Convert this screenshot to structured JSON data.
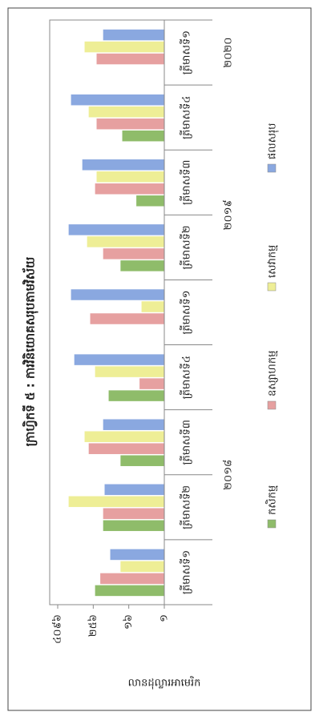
{
  "chart_data": {
    "type": "bar",
    "title": "ក្រាហ្វិកទី ៥ : ការវិនិយោគសរុបតាមវិស័យ",
    "y_label": "លានដុល្លារអាមេរិក",
    "groups": [
      {
        "label": "២០១៨",
        "quarters": [
          "ត្រីមាសទី១",
          "ត្រីមាសទី២",
          "ត្រីមាសទី៣",
          "ត្រីមាសទី៤"
        ]
      },
      {
        "label": "២០១៩",
        "quarters": [
          "ត្រីមាសទី១",
          "ត្រីមាសទី២",
          "ត្រីមាសទី៣",
          "ត្រីមាសទី៤"
        ]
      },
      {
        "label": "២០២០",
        "quarters": [
          "ត្រីមាសទី១"
        ]
      }
    ],
    "series": [
      {
        "name": "កសិកម្ម",
        "color": "#8fbc6a",
        "values": [
          225,
          120,
          31,
          78,
          null,
          31,
          9,
          27,
          null
        ]
      },
      {
        "name": "ឧស្សាហកម្ម",
        "color": "#e6a0a0",
        "values": [
          150,
          120,
          370,
          7,
          330,
          120,
          225,
          200,
          200
        ]
      },
      {
        "name": "សេវាកម្ម",
        "color": "#eeee96",
        "values": [
          31,
          1770,
          510,
          225,
          6,
          420,
          200,
          370,
          510
        ]
      },
      {
        "name": "ផលសរុប",
        "color": "#8aa8e0",
        "values": [
          69,
          107,
          120,
          1140,
          1470,
          1770,
          610,
          1470,
          120
        ]
      }
    ],
    "log": true,
    "ylim": [
      1,
      4096
    ],
    "yticks": [
      {
        "value": 1,
        "label": "១"
      },
      {
        "value": 16,
        "label": "១៦"
      },
      {
        "value": 256,
        "label": "២៥៦"
      },
      {
        "value": 4096,
        "label": "៤០៩៦"
      }
    ],
    "grid": false
  }
}
